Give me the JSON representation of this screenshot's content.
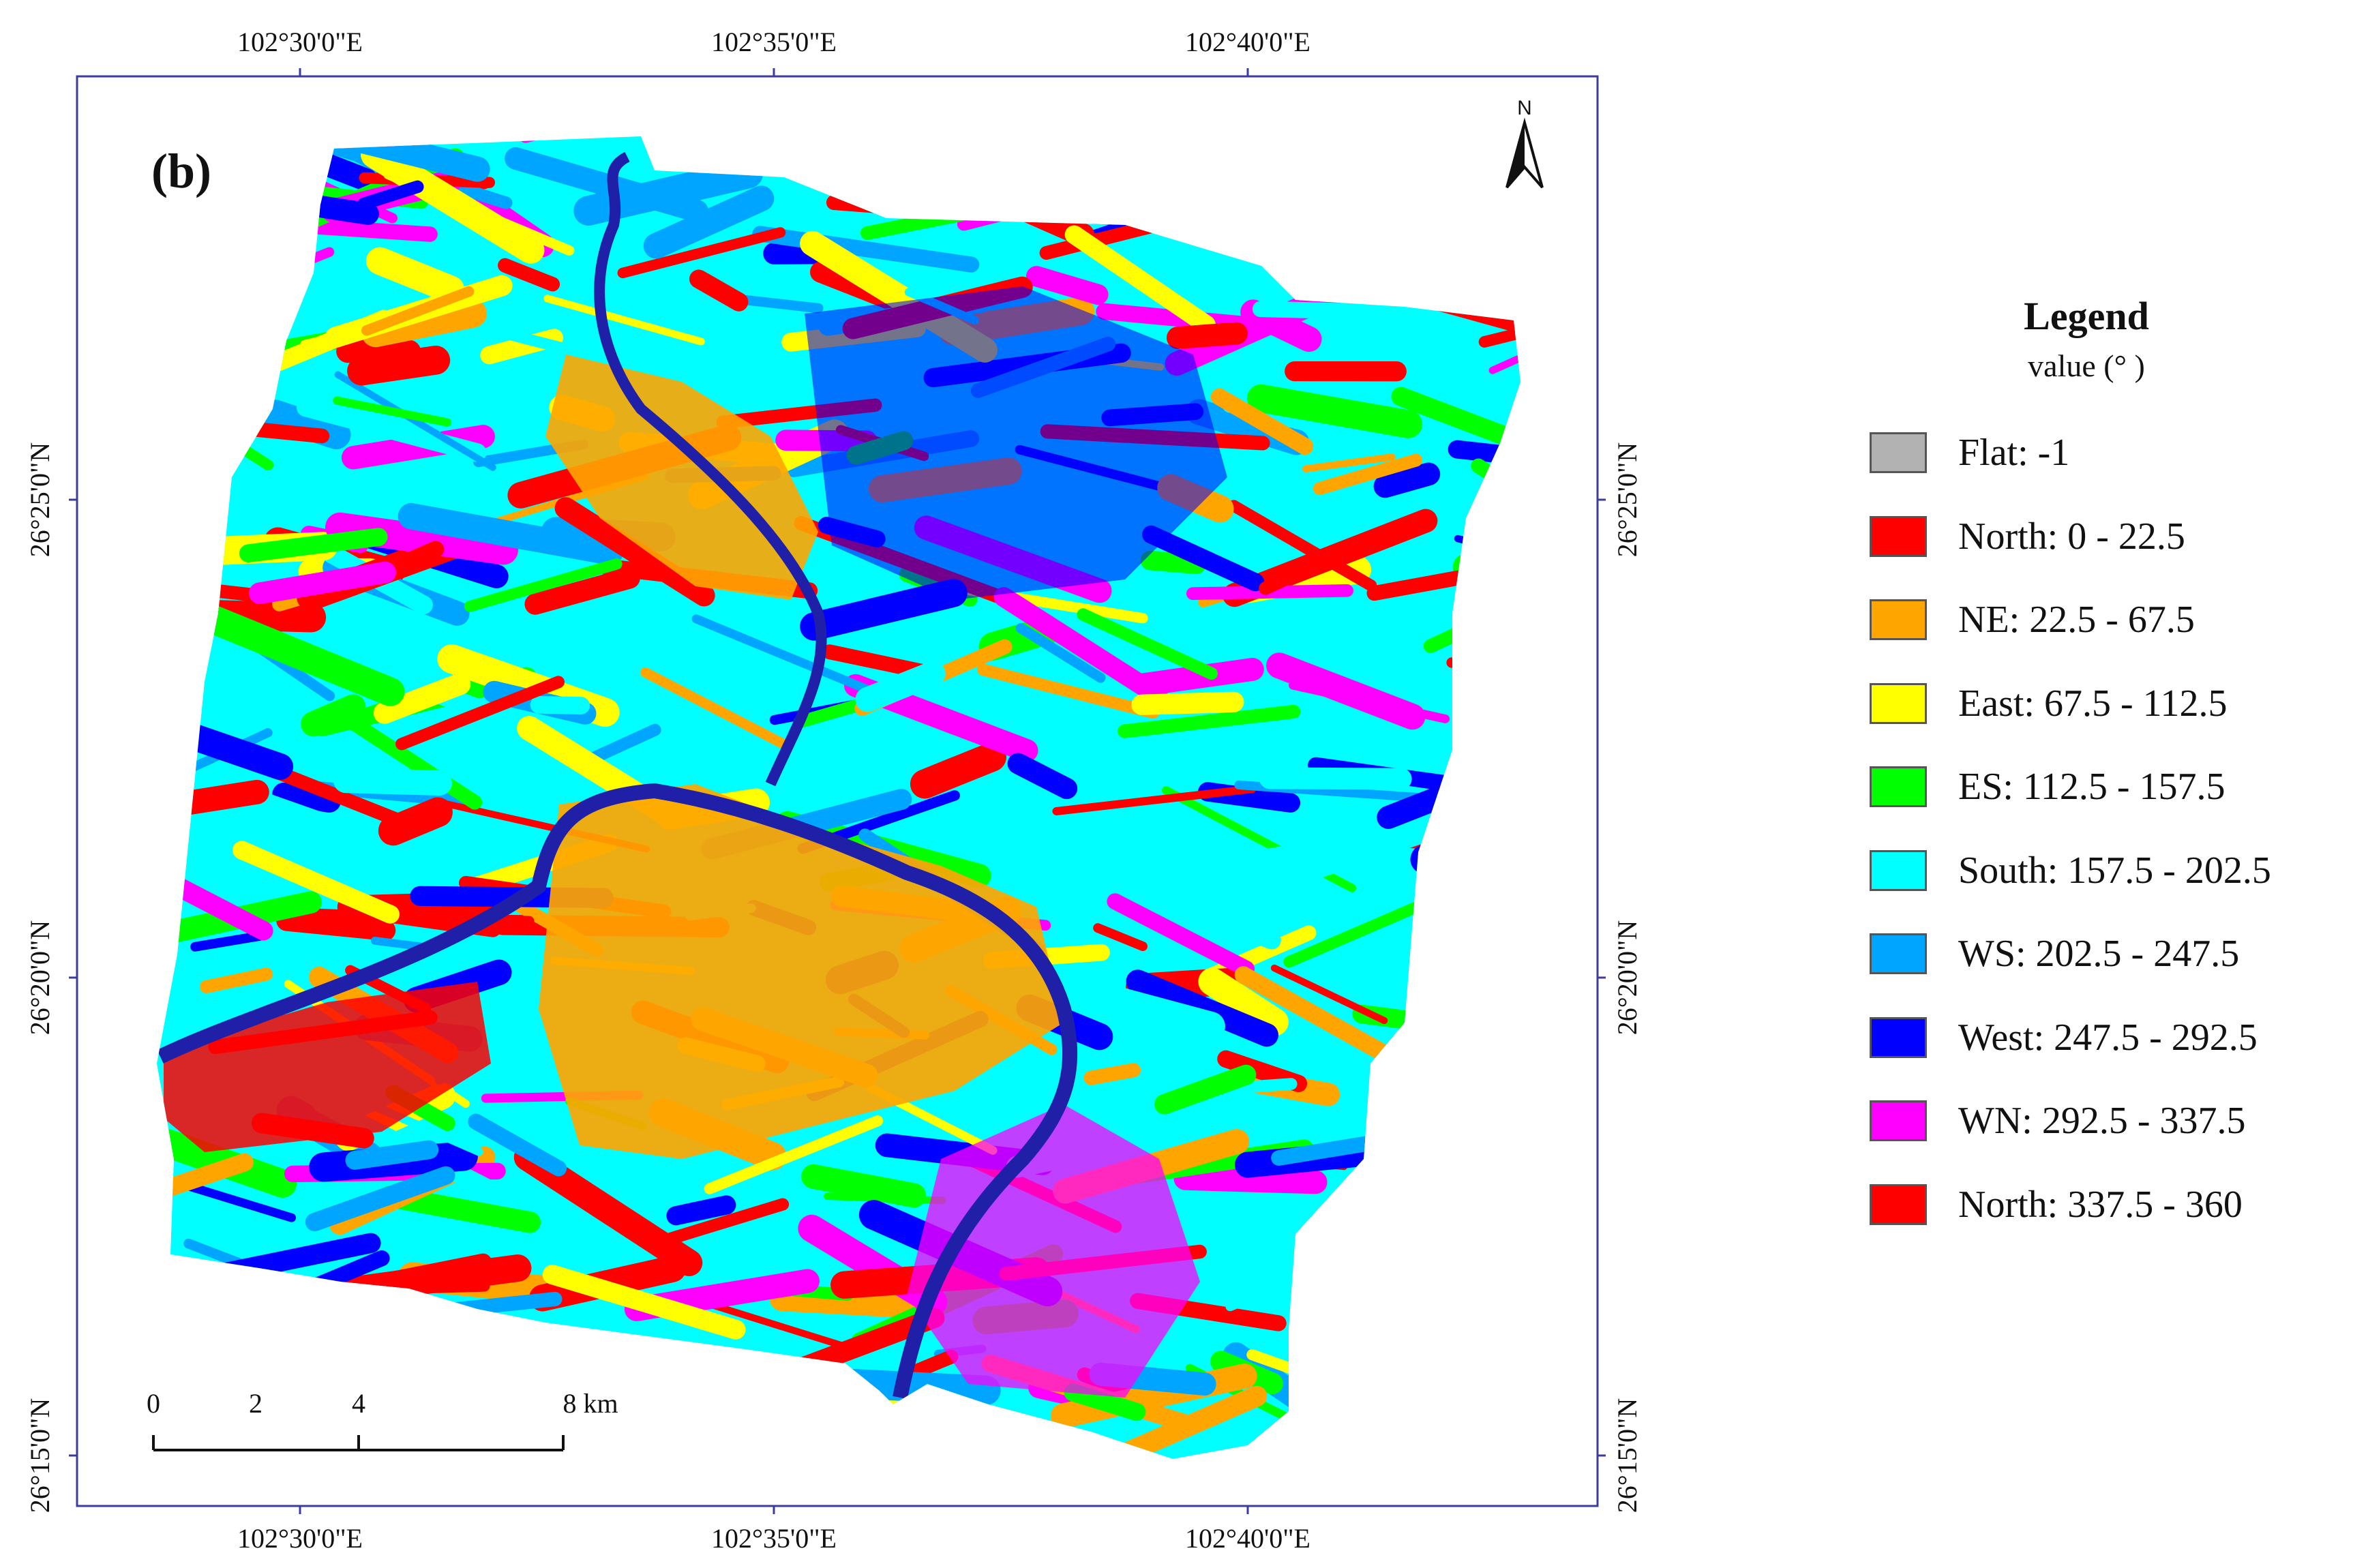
{
  "map": {
    "panel_label": "(b)",
    "north_arrow_label": "N",
    "top_axis_labels": [
      "102°30'0\"E",
      "102°35'0\"E",
      "102°40'0\"E"
    ],
    "bottom_axis_labels": [
      "102°30'0\"E",
      "102°35'0\"E",
      "102°40'0\"E"
    ],
    "left_axis_labels": [
      "26°25'0\"N",
      "26°20'0\"N",
      "26°15'0\"N"
    ],
    "right_axis_labels": [
      "26°25'0\"N",
      "26°20'0\"N",
      "26°15'0\"N"
    ],
    "scale_bar": {
      "ticks": [
        "0",
        "2",
        "4",
        "8 km"
      ]
    }
  },
  "legend": {
    "title": "Legend",
    "subtitle": "value (°  )",
    "items": [
      {
        "label": "Flat: -1",
        "color": "#b2b2b2"
      },
      {
        "label": "North: 0 - 22.5",
        "color": "#ff0000"
      },
      {
        "label": "NE: 22.5 - 67.5",
        "color": "#ffa500"
      },
      {
        "label": "East: 67.5 - 112.5",
        "color": "#ffff00"
      },
      {
        "label": "ES: 112.5 - 157.5",
        "color": "#00ff00"
      },
      {
        "label": "South: 157.5 - 202.5",
        "color": "#00ffff"
      },
      {
        "label": "WS: 202.5 - 247.5",
        "color": "#00a5ff"
      },
      {
        "label": "West: 247.5 - 292.5",
        "color": "#0000ff"
      },
      {
        "label": "WN: 292.5 - 337.5",
        "color": "#ff00ff"
      },
      {
        "label": "North: 337.5 - 360",
        "color": "#ff0000"
      }
    ]
  },
  "colors": {
    "river": "#1f1fa8",
    "frame": "#3b3ba0"
  }
}
